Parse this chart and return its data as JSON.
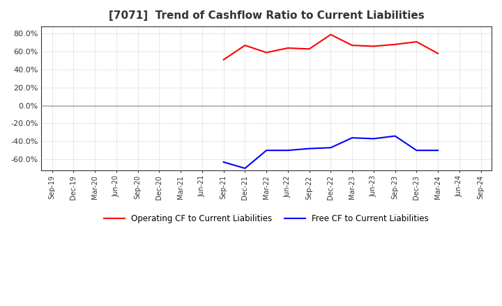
{
  "title": "[7071]  Trend of Cashflow Ratio to Current Liabilities",
  "title_fontsize": 11,
  "title_color": "#333333",
  "ylim": [
    -0.72,
    0.88
  ],
  "yticks": [
    -0.6,
    -0.4,
    -0.2,
    0.0,
    0.2,
    0.4,
    0.6,
    0.8
  ],
  "grid_color": "#aaaaaa",
  "background_color": "#ffffff",
  "plot_bg_color": "#ffffff",
  "operating_cf_color": "#ff0000",
  "free_cf_color": "#0000ff",
  "operating_cf_label": "Operating CF to Current Liabilities",
  "free_cf_label": "Free CF to Current Liabilities",
  "xtick_labels": [
    "Sep-19",
    "Dec-19",
    "Mar-20",
    "Jun-20",
    "Sep-20",
    "Dec-20",
    "Mar-21",
    "Jun-21",
    "Sep-21",
    "Dec-21",
    "Mar-22",
    "Jun-22",
    "Sep-22",
    "Dec-22",
    "Mar-23",
    "Jun-23",
    "Sep-23",
    "Dec-23",
    "Mar-24",
    "Jun-24",
    "Sep-24"
  ],
  "operating_cf": [
    null,
    null,
    null,
    null,
    null,
    null,
    null,
    null,
    0.51,
    0.67,
    0.59,
    0.64,
    0.63,
    0.79,
    0.67,
    0.66,
    0.68,
    0.71,
    0.58,
    null,
    null
  ],
  "free_cf": [
    null,
    null,
    null,
    null,
    null,
    null,
    null,
    null,
    -0.63,
    -0.7,
    -0.5,
    -0.5,
    -0.48,
    -0.47,
    -0.36,
    -0.37,
    -0.34,
    -0.5,
    -0.5,
    null,
    null
  ],
  "line_width": 1.5
}
